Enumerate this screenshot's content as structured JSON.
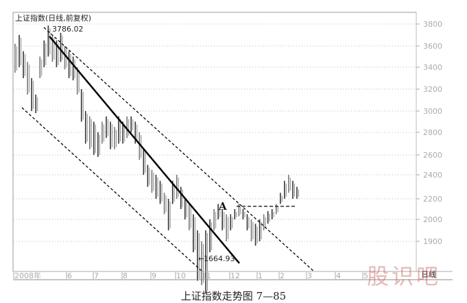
{
  "chart_data": {
    "type": "candlestick",
    "title": "上证指数(日线,前复权)",
    "y_ticks": [
      3800,
      3600,
      3400,
      3200,
      3000,
      2800,
      2600,
      2400,
      2200,
      2000,
      1900
    ],
    "x_ticks": [
      "2008年",
      "6",
      "7",
      "8",
      "9",
      "10",
      "11",
      "12",
      "1",
      "2",
      "3",
      "4",
      "5"
    ],
    "period_label": "日线",
    "grid": true,
    "bars_high_low": [
      [
        3620,
        3350
      ],
      [
        3700,
        3400
      ],
      [
        3550,
        3300
      ],
      [
        3450,
        3150
      ],
      [
        3300,
        3000
      ],
      [
        3150,
        2980
      ],
      [
        3500,
        3300
      ],
      [
        3650,
        3400
      ],
      [
        3786,
        3500
      ],
      [
        3700,
        3450
      ],
      [
        3650,
        3400
      ],
      [
        3720,
        3450
      ],
      [
        3600,
        3380
      ],
      [
        3550,
        3300
      ],
      [
        3500,
        3280
      ],
      [
        3400,
        3150
      ],
      [
        3200,
        2900
      ],
      [
        3000,
        2700
      ],
      [
        2950,
        2650
      ],
      [
        2900,
        2600
      ],
      [
        2800,
        2580
      ],
      [
        2900,
        2700
      ],
      [
        2950,
        2750
      ],
      [
        2900,
        2650
      ],
      [
        2850,
        2650
      ],
      [
        2950,
        2700
      ],
      [
        2900,
        2700
      ],
      [
        2950,
        2750
      ],
      [
        2950,
        2800
      ],
      [
        2900,
        2700
      ],
      [
        2800,
        2550
      ],
      [
        2650,
        2400
      ],
      [
        2500,
        2300
      ],
      [
        2450,
        2250
      ],
      [
        2400,
        2200
      ],
      [
        2350,
        2150
      ],
      [
        2250,
        2050
      ],
      [
        2200,
        1950
      ],
      [
        2350,
        2150
      ],
      [
        2400,
        2200
      ],
      [
        2300,
        2100
      ],
      [
        2200,
        2000
      ],
      [
        2150,
        1950
      ],
      [
        2050,
        1850
      ],
      [
        1950,
        1720
      ],
      [
        1900,
        1700
      ],
      [
        1950,
        1664
      ],
      [
        2000,
        1850
      ],
      [
        2100,
        1950
      ],
      [
        2150,
        2000
      ],
      [
        2100,
        1950
      ],
      [
        2050,
        1900
      ],
      [
        2050,
        1950
      ],
      [
        2100,
        2000
      ],
      [
        2150,
        2030
      ],
      [
        2100,
        2000
      ],
      [
        2050,
        1950
      ],
      [
        2000,
        1900
      ],
      [
        1980,
        1880
      ],
      [
        2000,
        1900
      ],
      [
        2050,
        1950
      ],
      [
        2080,
        1980
      ],
      [
        2100,
        2000
      ],
      [
        2150,
        2050
      ],
      [
        2250,
        2150
      ],
      [
        2350,
        2200
      ],
      [
        2400,
        2250
      ],
      [
        2350,
        2200
      ],
      [
        2300,
        2200
      ]
    ],
    "annotations": {
      "high": "3786.02",
      "low": "1664.93",
      "point": "A"
    }
  },
  "caption": "上证指数走势图 7—85",
  "watermark": "股识吧"
}
